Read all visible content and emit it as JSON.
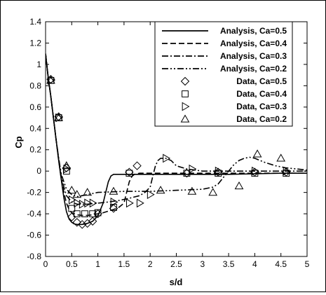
{
  "chart_data": {
    "type": "line",
    "xlabel": "s/d",
    "ylabel": "Cp",
    "xlim": [
      0,
      5
    ],
    "ylim": [
      -0.8,
      1.4
    ],
    "xticks": [
      0,
      0.5,
      1,
      1.5,
      2,
      2.5,
      3,
      3.5,
      4,
      4.5,
      5
    ],
    "yticks": [
      -0.8,
      -0.6,
      -0.4,
      -0.2,
      0,
      0.2,
      0.4,
      0.6,
      0.8,
      1,
      1.2,
      1.4
    ],
    "xtick_labels": [
      "0",
      "0.5",
      "1",
      "1.5",
      "2",
      "2.5",
      "3",
      "3.5",
      "4",
      "4.5",
      "5"
    ],
    "ytick_labels": [
      "-0.8",
      "-0.6",
      "-0.4",
      "-0.2",
      "0",
      "0.2",
      "0.4",
      "0.6",
      "0.8",
      "1",
      "1.2",
      "1.4"
    ],
    "grid": false,
    "legend_position": "top-right",
    "series": [
      {
        "name": "Analysis, Ca=0.5",
        "kind": "line",
        "dash": "solid",
        "color": "#000000",
        "x": [
          0.0,
          0.05,
          0.1,
          0.15,
          0.2,
          0.25,
          0.3,
          0.35,
          0.4,
          0.45,
          0.5,
          0.55,
          0.6,
          0.7,
          0.8,
          0.9,
          1.0,
          1.1,
          1.15,
          1.2,
          1.25,
          1.3,
          1.5,
          2.0,
          2.5,
          3.0,
          3.5,
          4.0,
          4.5,
          5.0
        ],
        "y": [
          1.1,
          0.88,
          0.7,
          0.5,
          0.3,
          0.1,
          -0.08,
          -0.25,
          -0.38,
          -0.45,
          -0.48,
          -0.495,
          -0.5,
          -0.5,
          -0.49,
          -0.47,
          -0.42,
          -0.3,
          -0.2,
          -0.1,
          -0.045,
          -0.03,
          -0.03,
          -0.03,
          -0.03,
          -0.03,
          -0.03,
          -0.025,
          -0.02,
          -0.02
        ]
      },
      {
        "name": "Analysis, Ca=0.4",
        "kind": "line",
        "dash": "dash",
        "color": "#000000",
        "x": [
          0.0,
          0.05,
          0.1,
          0.15,
          0.2,
          0.25,
          0.3,
          0.35,
          0.4,
          0.45,
          0.5,
          0.6,
          0.7,
          0.8,
          0.9,
          1.0,
          1.1,
          1.2,
          1.3,
          1.4,
          1.5,
          1.55,
          1.6,
          1.65,
          1.7,
          1.8,
          2.0,
          2.5,
          3.0,
          3.5,
          4.0,
          4.5,
          5.0
        ],
        "y": [
          1.1,
          0.88,
          0.7,
          0.5,
          0.3,
          0.1,
          -0.07,
          -0.2,
          -0.3,
          -0.36,
          -0.39,
          -0.41,
          -0.415,
          -0.415,
          -0.41,
          -0.4,
          -0.39,
          -0.375,
          -0.36,
          -0.34,
          -0.3,
          -0.2,
          -0.1,
          -0.05,
          -0.03,
          -0.02,
          -0.02,
          -0.02,
          -0.02,
          -0.02,
          -0.02,
          -0.02,
          -0.02
        ]
      },
      {
        "name": "Analysis, Ca=0.3",
        "kind": "line",
        "dash": "dashdot",
        "color": "#000000",
        "x": [
          0.0,
          0.05,
          0.1,
          0.15,
          0.2,
          0.25,
          0.3,
          0.35,
          0.4,
          0.5,
          0.6,
          0.8,
          1.0,
          1.2,
          1.4,
          1.6,
          1.8,
          1.9,
          2.0,
          2.05,
          2.1,
          2.15,
          2.2,
          2.3,
          2.4,
          2.5,
          2.7,
          3.0,
          3.5,
          4.0,
          4.5,
          5.0
        ],
        "y": [
          1.1,
          0.88,
          0.7,
          0.5,
          0.3,
          0.12,
          -0.05,
          -0.15,
          -0.23,
          -0.29,
          -0.31,
          -0.31,
          -0.3,
          -0.29,
          -0.275,
          -0.255,
          -0.23,
          -0.2,
          -0.15,
          -0.05,
          0.05,
          0.1,
          0.12,
          0.12,
          0.1,
          0.05,
          0.02,
          0.0,
          0.0,
          0.0,
          0.0,
          0.0
        ]
      },
      {
        "name": "Analysis, Ca=0.2",
        "kind": "line",
        "dash": "dashdotdot",
        "color": "#000000",
        "x": [
          0.0,
          0.05,
          0.1,
          0.15,
          0.2,
          0.25,
          0.3,
          0.4,
          0.5,
          0.6,
          0.8,
          1.0,
          1.5,
          2.0,
          2.5,
          3.0,
          3.2,
          3.3,
          3.4,
          3.5,
          3.6,
          3.7,
          3.8,
          3.9,
          4.0,
          4.1,
          4.2,
          4.4,
          4.6,
          4.8,
          5.0
        ],
        "y": [
          1.1,
          0.88,
          0.7,
          0.5,
          0.3,
          0.12,
          -0.03,
          -0.17,
          -0.22,
          -0.24,
          -0.22,
          -0.2,
          -0.19,
          -0.19,
          -0.18,
          -0.17,
          -0.15,
          -0.12,
          -0.06,
          0.0,
          0.06,
          0.1,
          0.12,
          0.13,
          0.12,
          0.1,
          0.08,
          0.05,
          0.03,
          0.02,
          0.01
        ]
      },
      {
        "name": "Data, Ca=0.5",
        "kind": "marker",
        "marker": "diamond",
        "x": [
          0.1,
          0.25,
          0.4,
          0.5,
          0.6,
          0.7,
          0.8,
          0.9,
          1.0,
          1.3,
          1.6,
          1.75,
          2.7,
          3.3,
          4.0,
          4.6
        ],
        "y": [
          0.86,
          0.51,
          0.03,
          -0.43,
          -0.48,
          -0.5,
          -0.49,
          -0.47,
          -0.4,
          -0.35,
          -0.01,
          0.05,
          -0.02,
          -0.01,
          -0.01,
          -0.01
        ]
      },
      {
        "name": "Data, Ca=0.4",
        "kind": "marker",
        "marker": "square",
        "x": [
          0.1,
          0.25,
          0.4,
          0.5,
          0.6,
          0.75,
          0.9,
          1.0,
          1.3,
          1.6,
          2.7,
          3.3,
          4.0,
          4.6
        ],
        "y": [
          0.85,
          0.5,
          0.0,
          -0.35,
          -0.4,
          -0.4,
          -0.4,
          -0.39,
          -0.34,
          -0.02,
          -0.02,
          -0.02,
          -0.02,
          -0.02
        ]
      },
      {
        "name": "Data, Ca=0.3",
        "kind": "marker",
        "marker": "triangle-right",
        "x": [
          0.1,
          0.25,
          0.4,
          0.5,
          0.6,
          0.7,
          0.8,
          0.9,
          1.3,
          1.6,
          1.8,
          2.0,
          2.3,
          2.8,
          3.3,
          4.0,
          4.6
        ],
        "y": [
          0.85,
          0.5,
          0.02,
          -0.27,
          -0.3,
          -0.31,
          -0.3,
          -0.3,
          -0.29,
          -0.3,
          -0.3,
          -0.22,
          0.12,
          0.02,
          0.0,
          0.0,
          0.0
        ]
      },
      {
        "name": "Data, Ca=0.2",
        "kind": "marker",
        "marker": "triangle-up",
        "x": [
          0.1,
          0.25,
          0.4,
          0.5,
          0.6,
          0.8,
          1.3,
          2.2,
          2.8,
          3.2,
          3.7,
          4.05,
          4.5
        ],
        "y": [
          0.85,
          0.5,
          0.05,
          -0.18,
          -0.22,
          -0.2,
          -0.19,
          -0.18,
          -0.19,
          -0.2,
          -0.14,
          0.16,
          0.12
        ]
      }
    ]
  }
}
